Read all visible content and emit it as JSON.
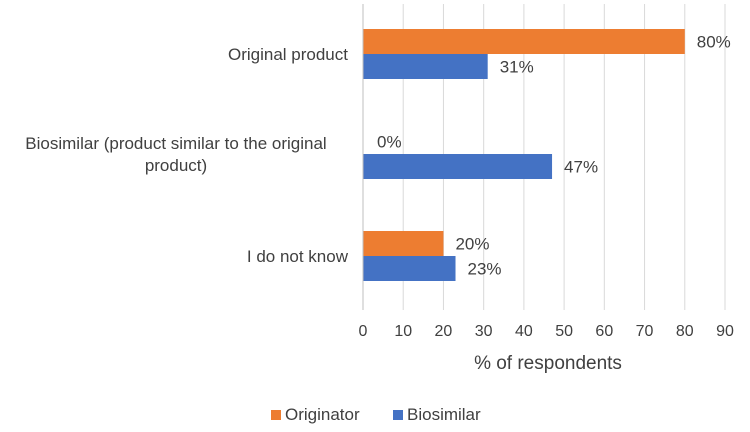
{
  "chart_data": {
    "type": "bar",
    "orientation": "horizontal",
    "title": "",
    "xlabel": "% of respondents",
    "ylabel": "",
    "xlim": [
      0,
      90
    ],
    "xticks": [
      0,
      10,
      20,
      30,
      40,
      50,
      60,
      70,
      80,
      90
    ],
    "grid": true,
    "legend_position": "bottom",
    "categories": [
      [
        "Original product"
      ],
      [
        "Biosimilar (product similar to the original",
        "product)"
      ],
      [
        "I do not know"
      ]
    ],
    "series": [
      {
        "name": "Originator",
        "color": "#ed7d31",
        "values": [
          80,
          0,
          20
        ],
        "labels": [
          "80%",
          "0%",
          "20%"
        ]
      },
      {
        "name": "Biosimilar",
        "color": "#4472c4",
        "values": [
          31,
          47,
          23
        ],
        "labels": [
          "31%",
          "47%",
          "23%"
        ]
      }
    ]
  }
}
